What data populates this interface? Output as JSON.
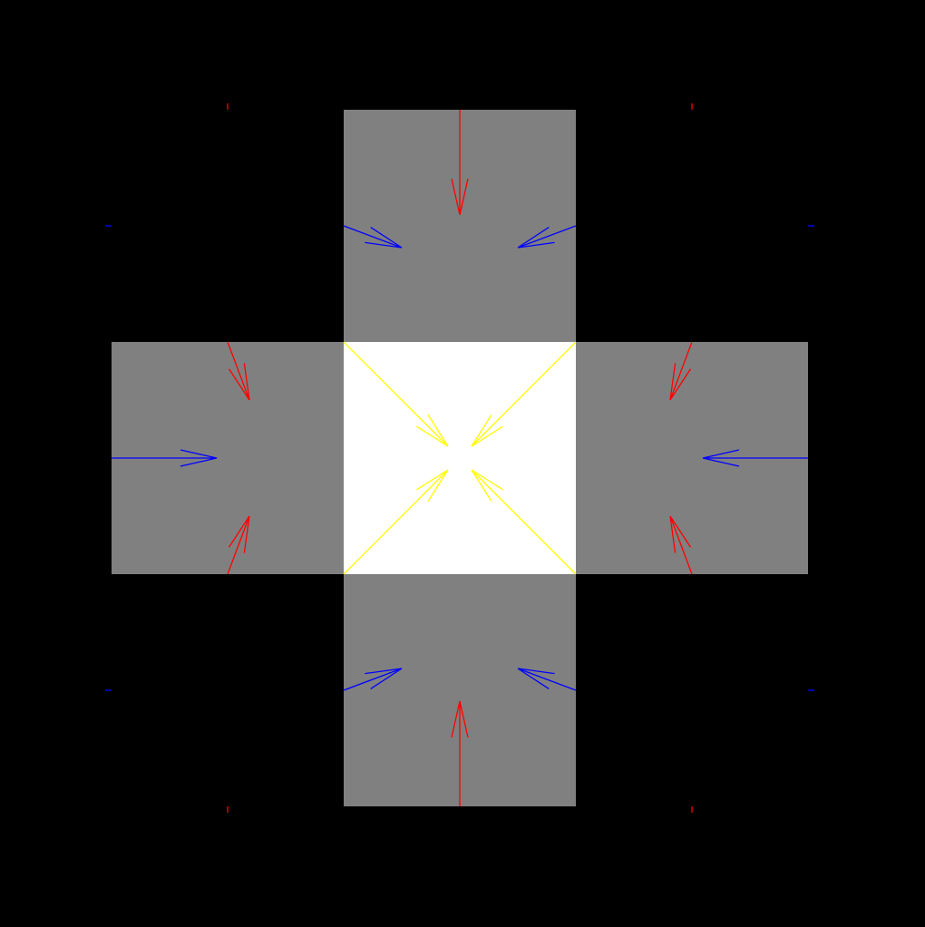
{
  "colors": {
    "background": "#000000",
    "center_cell": "#ffffff",
    "neighbor_cell": "#808080",
    "vertical_arrow": "#ff0000",
    "horizontal_arrow": "#0000ff",
    "diagonal_arrow": "#ffff00"
  },
  "grid": {
    "rows": 3,
    "cols": 3,
    "cells": [
      {
        "row": 0,
        "col": 0,
        "role": "corner"
      },
      {
        "row": 0,
        "col": 1,
        "role": "neighbor"
      },
      {
        "row": 0,
        "col": 2,
        "role": "corner"
      },
      {
        "row": 1,
        "col": 0,
        "role": "neighbor"
      },
      {
        "row": 1,
        "col": 1,
        "role": "center"
      },
      {
        "row": 1,
        "col": 2,
        "role": "neighbor"
      },
      {
        "row": 2,
        "col": 0,
        "role": "corner"
      },
      {
        "row": 2,
        "col": 1,
        "role": "neighbor"
      },
      {
        "row": 2,
        "col": 2,
        "role": "corner"
      }
    ]
  }
}
